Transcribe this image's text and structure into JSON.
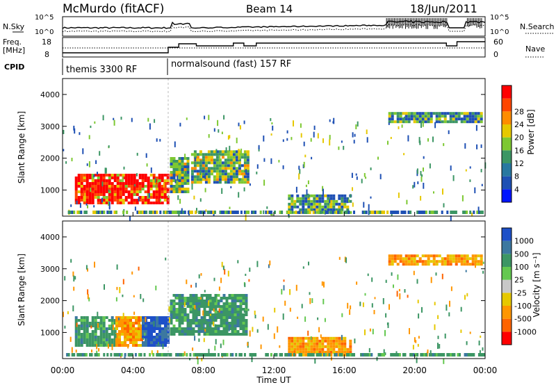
{
  "header": {
    "station": "McMurdo (fitACF)",
    "beam": "Beam 14",
    "date": "18/Jun/2011"
  },
  "strips": {
    "nsky_label": "N.Sky",
    "nsky_ticks": [
      "10^5",
      "10^0"
    ],
    "nsearch_label": "N.Search",
    "nsearch_ticks": [
      "10^5",
      "10^0"
    ],
    "freq_label": "Freq.",
    "freq_unit": "[MHz]",
    "freq_ticks": [
      "18",
      "8"
    ],
    "nave_label": "Nave",
    "nave_ticks": [
      "60",
      "0"
    ],
    "cpid_label": "CPID",
    "cpid_segments": [
      {
        "name": "themis 3300 RF",
        "start_hour": 0
      },
      {
        "name": "normalsound (fast) 157 RF",
        "start_hour": 6
      }
    ]
  },
  "chart_data": [
    {
      "type": "heatmap",
      "panel": "power",
      "ylabel": "Slant Range [km]",
      "xlabel": "Time UT",
      "x_ticks": [
        "00:00",
        "04:00",
        "08:00",
        "12:00",
        "16:00",
        "20:00",
        "00:00"
      ],
      "y_ticks": [
        "1000",
        "2000",
        "3000",
        "4000"
      ],
      "ylim": [
        180,
        4500
      ],
      "xlim_hours": [
        0,
        24
      ],
      "colorbar": {
        "label": "Power [dB]",
        "ticks": [
          "4",
          "8",
          "12",
          "16",
          "20",
          "24",
          "28"
        ],
        "colors": [
          "#0014ff",
          "#1e50b4",
          "#2878a0",
          "#3c9664",
          "#7dc832",
          "#e6c800",
          "#ff8c00",
          "#ff4600",
          "#ff0000"
        ]
      },
      "regions": [
        {
          "t0": 0.7,
          "t1": 6.0,
          "r0": 550,
          "r1": 1500,
          "level": "high"
        },
        {
          "t0": 6.1,
          "t1": 7.2,
          "r0": 900,
          "r1": 2000,
          "level": "mid"
        },
        {
          "t0": 7.3,
          "t1": 10.5,
          "r0": 1200,
          "r1": 2200,
          "level": "mid"
        },
        {
          "t0": 12.8,
          "t1": 16.4,
          "r0": 250,
          "r1": 800,
          "level": "low"
        },
        {
          "t0": 18.5,
          "t1": 23.8,
          "r0": 3100,
          "r1": 3400,
          "level": "low"
        }
      ]
    },
    {
      "type": "heatmap",
      "panel": "velocity",
      "ylabel": "Slant Range [km]",
      "xlabel": "Time UT",
      "x_ticks": [
        "00:00",
        "04:00",
        "08:00",
        "12:00",
        "16:00",
        "20:00",
        "00:00"
      ],
      "y_ticks": [
        "1000",
        "2000",
        "3000",
        "4000"
      ],
      "ylim": [
        180,
        4500
      ],
      "xlim_hours": [
        0,
        24
      ],
      "colorbar": {
        "label": "Velocity [m s⁻¹]",
        "ticks": [
          "1000",
          "500",
          "100",
          "25",
          "-25",
          "-100",
          "-500",
          "-1000"
        ],
        "colors": [
          "#1e50c8",
          "#3c78a0",
          "#3c9664",
          "#64c850",
          "#c8c8c8",
          "#e6c800",
          "#ff9600",
          "#ff6400",
          "#ff0000"
        ]
      },
      "regions": [
        {
          "t0": 0.7,
          "t1": 3.0,
          "r0": 550,
          "r1": 1500,
          "level": "green"
        },
        {
          "t0": 3.0,
          "t1": 4.5,
          "r0": 550,
          "r1": 1500,
          "level": "orange"
        },
        {
          "t0": 4.5,
          "t1": 6.0,
          "r0": 550,
          "r1": 1500,
          "level": "blue"
        },
        {
          "t0": 6.1,
          "t1": 10.5,
          "r0": 900,
          "r1": 2200,
          "level": "green"
        },
        {
          "t0": 12.8,
          "t1": 16.4,
          "r0": 250,
          "r1": 800,
          "level": "orange"
        },
        {
          "t0": 18.5,
          "t1": 23.8,
          "r0": 3100,
          "r1": 3400,
          "level": "orange"
        }
      ]
    }
  ]
}
